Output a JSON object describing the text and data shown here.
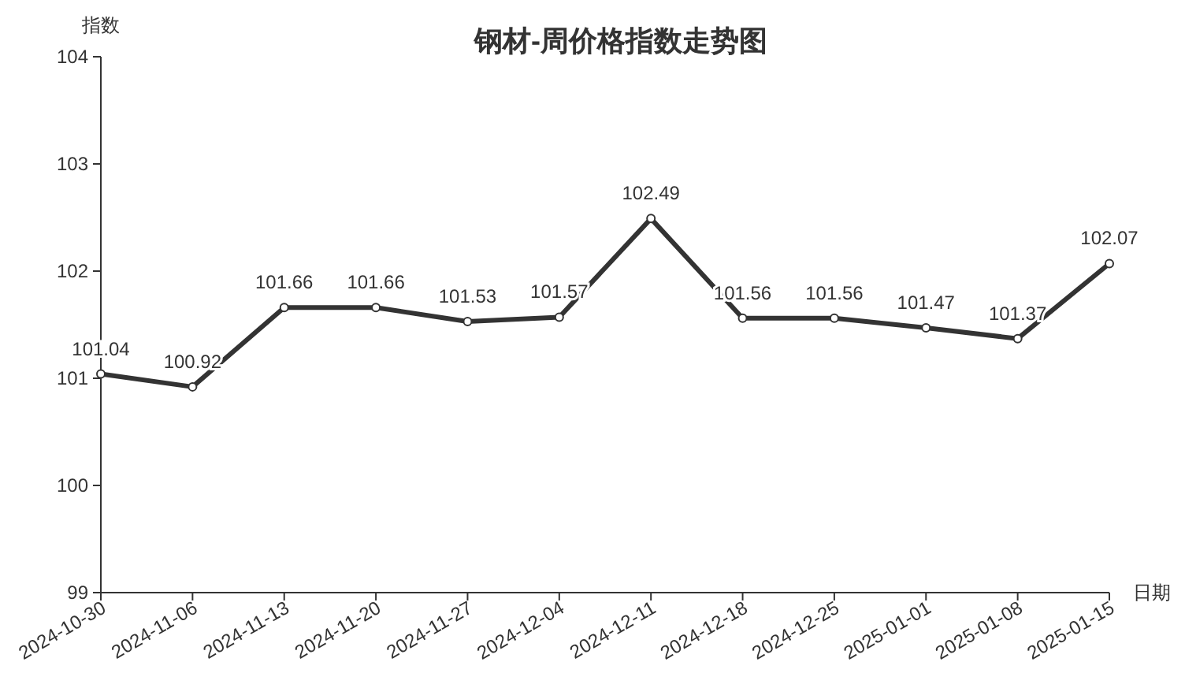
{
  "chart_data": {
    "type": "line",
    "title": "钢材-周价格指数走势图",
    "xlabel": "日期",
    "ylabel": "指数",
    "categories": [
      "2024-10-30",
      "2024-11-06",
      "2024-11-13",
      "2024-11-20",
      "2024-11-27",
      "2024-12-04",
      "2024-12-11",
      "2024-12-18",
      "2024-12-25",
      "2025-01-01",
      "2025-01-08",
      "2025-01-15"
    ],
    "values": [
      101.04,
      100.92,
      101.66,
      101.66,
      101.53,
      101.57,
      102.49,
      101.56,
      101.56,
      101.47,
      101.37,
      102.07
    ],
    "color": "#333333",
    "ylim": [
      99,
      104
    ],
    "yticks": [
      99,
      100,
      101,
      102,
      103,
      104
    ],
    "data_labels": true,
    "marker": "circle",
    "line_style": "solid",
    "grid": false
  }
}
